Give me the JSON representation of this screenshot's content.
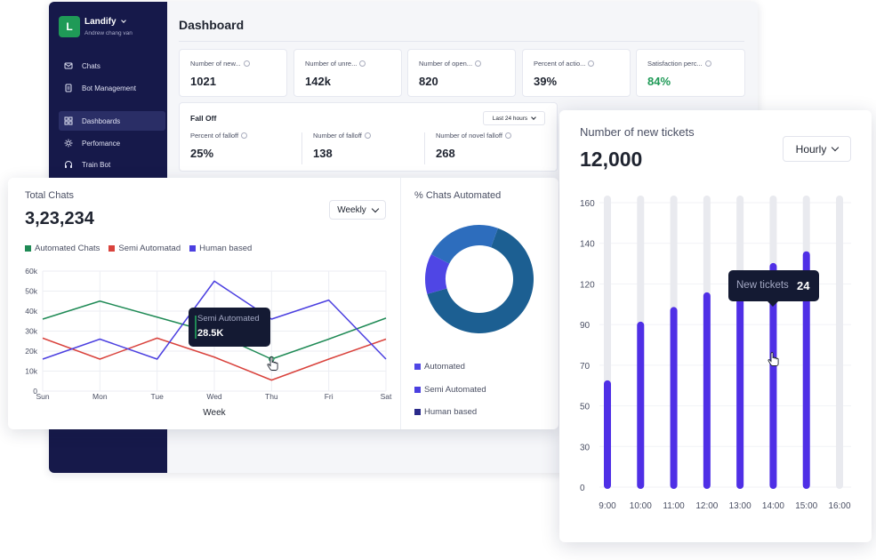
{
  "app": {
    "workspace": {
      "initial": "L",
      "name": "Landify",
      "user": "Andrew chang van"
    },
    "nav": [
      {
        "label": "Chats",
        "icon": "chat-icon",
        "active": false
      },
      {
        "label": "Bot Management",
        "icon": "document-icon",
        "active": false
      },
      {
        "label": "Dashboards",
        "icon": "grid-icon",
        "active": true
      },
      {
        "label": "Perfomance",
        "icon": "sun-icon",
        "active": false
      },
      {
        "label": "Train Bot",
        "icon": "headset-icon",
        "active": false
      }
    ],
    "page_title": "Dashboard",
    "stats": [
      {
        "label": "Number of new...",
        "value": "1021",
        "color": "#1f2430"
      },
      {
        "label": "Number of unre...",
        "value": "142k",
        "color": "#1f2430"
      },
      {
        "label": "Number of open...",
        "value": "820",
        "color": "#1f2430"
      },
      {
        "label": "Percent of actio...",
        "value": "39%",
        "color": "#1f2430"
      },
      {
        "label": "Satisfaction perc...",
        "value": "84%",
        "color": "#1f9a57"
      }
    ],
    "falloff": {
      "title": "Fall Off",
      "range": "Last 24 hours",
      "metrics": [
        {
          "label": "Percent of falloff",
          "value": "25%"
        },
        {
          "label": "Number of falloff",
          "value": "138"
        },
        {
          "label": "Number of novel falloff",
          "value": "268"
        }
      ]
    }
  },
  "total_chats": {
    "title": "Total Chats",
    "value": "3,23,234",
    "period": "Weekly",
    "tooltip": {
      "label": "Semi Automated",
      "value": "28.5K"
    }
  },
  "chats_automated": {
    "title": "% Chats Automated",
    "legend": [
      {
        "label": "Automated",
        "color": "#4f46e5"
      },
      {
        "label": "Semi Automated",
        "color": "#4a3fe0"
      },
      {
        "label": "Human based",
        "color": "#2a2a8a"
      }
    ]
  },
  "new_tickets": {
    "title": "Number of new tickets",
    "value": "12,000",
    "period": "Hourly",
    "tooltip": {
      "label": "New tickets",
      "value": "24"
    }
  },
  "chart_data": [
    {
      "type": "line",
      "title": "Total Chats",
      "xlabel": "Week",
      "ylabel": "",
      "categories": [
        "Sun",
        "Mon",
        "Tue",
        "Wed",
        "Thu",
        "Fri",
        "Sat"
      ],
      "y_ticks": [
        "0",
        "10k",
        "20k",
        "30k",
        "40k",
        "50k",
        "60k"
      ],
      "ylim": [
        0,
        60000
      ],
      "grid": true,
      "legend_position": "top-left",
      "series": [
        {
          "name": "Automated Chats",
          "color": "#1f8a55",
          "values": [
            36000,
            45000,
            37000,
            29000,
            16000,
            26000,
            36500
          ]
        },
        {
          "name": "Semi Automatad",
          "color": "#d9423c",
          "values": [
            26500,
            16000,
            26500,
            17000,
            5500,
            16000,
            26000
          ]
        },
        {
          "name": "Human based",
          "color": "#4b3fe0",
          "values": [
            16000,
            26000,
            16000,
            55000,
            36000,
            45500,
            16000
          ]
        }
      ]
    },
    {
      "type": "pie",
      "title": "% Chats Automated",
      "donut": true,
      "slices": [
        {
          "label": "Human based",
          "value": 65,
          "color": "#1c5f92"
        },
        {
          "label": "Automated",
          "value": 12,
          "color": "#4f46e5"
        },
        {
          "label": "Semi Automated",
          "value": 23,
          "color": "#2d6dbd"
        }
      ]
    },
    {
      "type": "bar",
      "title": "Number of new tickets",
      "categories": [
        "9:00",
        "10:00",
        "11:00",
        "12:00",
        "13:00",
        "14:00",
        "15:00",
        "16:00"
      ],
      "y_ticks": [
        "0",
        "30",
        "50",
        "70",
        "90",
        "120",
        "140",
        "160"
      ],
      "values": [
        0.37,
        0.57,
        0.62,
        0.67,
        0.72,
        0.77,
        0.81,
        0
      ],
      "value_scale": "fraction of full track height",
      "grid": true
    }
  ]
}
